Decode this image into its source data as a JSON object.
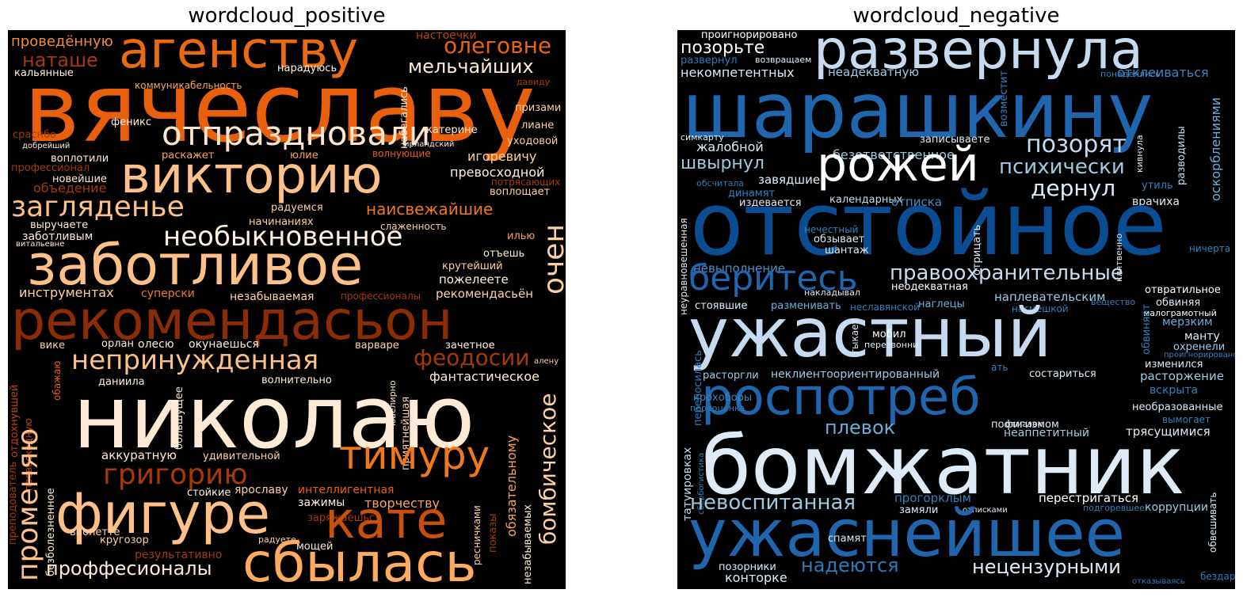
{
  "panels": [
    {
      "title": "wordcloud_positive",
      "words": [
        {
          "t": "вячеславу",
          "c": "#e8600c"
        },
        {
          "t": "агенству",
          "c": "#ea6a12"
        },
        {
          "t": "олеговне",
          "c": "#e86410"
        },
        {
          "t": "проведённую",
          "c": "#f08a3c"
        },
        {
          "t": "наташе",
          "c": "#a53a06"
        },
        {
          "t": "настоечки",
          "c": "#b9460a"
        },
        {
          "t": "мельчайших",
          "c": "#fdebd5"
        },
        {
          "t": "кальянные",
          "c": "#fff1e2"
        },
        {
          "t": "коммуникабельность",
          "c": "#f5a55b"
        },
        {
          "t": "нарадуюсь",
          "c": "#fff1e2"
        },
        {
          "t": "давиду",
          "c": "#a53a06"
        },
        {
          "t": "отпраздновали",
          "c": "#fde6cc"
        },
        {
          "t": "феникс",
          "c": "#fff1e2"
        },
        {
          "t": "призами",
          "c": "#fdd0a2"
        },
        {
          "t": "набегались",
          "c": "#fdebd5"
        },
        {
          "t": "катерине",
          "c": "#fdebd5"
        },
        {
          "t": "лиане",
          "c": "#fdd0a2"
        },
        {
          "t": "сраснбо",
          "c": "#a53a06"
        },
        {
          "t": "добрейший",
          "c": "#fdebd5"
        },
        {
          "t": "ирландский",
          "c": "#fdebd5"
        },
        {
          "t": "уходовой",
          "c": "#fdd0a2"
        },
        {
          "t": "воплотили",
          "c": "#fdebd5"
        },
        {
          "t": "раскажет",
          "c": "#f5a55b"
        },
        {
          "t": "юлие",
          "c": "#f5a55b"
        },
        {
          "t": "волнующие",
          "c": "#e8600c"
        },
        {
          "t": "игоревичу",
          "c": "#fdd0a2"
        },
        {
          "t": "профессионал",
          "c": "#a53a06"
        },
        {
          "t": "викторию",
          "c": "#fdc088"
        },
        {
          "t": "новейшие",
          "c": "#fdebd5"
        },
        {
          "t": "превосходной",
          "c": "#fff1e2"
        },
        {
          "t": "объедение",
          "c": "#a53a06"
        },
        {
          "t": "потрясающих",
          "c": "#a53a06"
        },
        {
          "t": "воплощает",
          "c": "#fdd0a2"
        },
        {
          "t": "загляденье",
          "c": "#fdc088"
        },
        {
          "t": "наисвежайшие",
          "c": "#f07818"
        },
        {
          "t": "радуемся",
          "c": "#fdd0a2"
        },
        {
          "t": "слаженность",
          "c": "#fdd0a2"
        },
        {
          "t": "очен",
          "c": "#fdd0a2"
        },
        {
          "t": "выручаете",
          "c": "#fdebd5"
        },
        {
          "t": "начинаниях",
          "c": "#fdd0a2"
        },
        {
          "t": "заботливым",
          "c": "#fdebd5"
        },
        {
          "t": "необыкновенное",
          "c": "#fff1e2"
        },
        {
          "t": "илью",
          "c": "#f5a55b"
        },
        {
          "t": "витальевне",
          "c": "#fdebd5"
        },
        {
          "t": "отъешь",
          "c": "#fdebd5"
        },
        {
          "t": "заботливое",
          "c": "#fdc088"
        },
        {
          "t": "крутейший",
          "c": "#fdd0a2"
        },
        {
          "t": "пожелеете",
          "c": "#fff1e2"
        },
        {
          "t": "инструментах",
          "c": "#fdd0a2"
        },
        {
          "t": "суперски",
          "c": "#f07818"
        },
        {
          "t": "незабываемая",
          "c": "#fdd0a2"
        },
        {
          "t": "профессионалы",
          "c": "#a53a06"
        },
        {
          "t": "рекомендасьён",
          "c": "#fdd0a2"
        },
        {
          "t": "рекомендасьон",
          "c": "#8c2c04"
        },
        {
          "t": "вике",
          "c": "#fdd0a2"
        },
        {
          "t": "орлан",
          "c": "#fdebd5"
        },
        {
          "t": "олесю",
          "c": "#fdebd5"
        },
        {
          "t": "окунаешься",
          "c": "#fdebd5"
        },
        {
          "t": "варваре",
          "c": "#fdd0a2"
        },
        {
          "t": "зачетное",
          "c": "#fff1e2"
        },
        {
          "t": "непринужденная",
          "c": "#fdc088"
        },
        {
          "t": "феодосии",
          "c": "#a53a06"
        },
        {
          "t": "алену",
          "c": "#fdd0a2"
        },
        {
          "t": "отдохнувшей",
          "c": "#b9460a"
        },
        {
          "t": "обажаю",
          "c": "#e8600c"
        },
        {
          "t": "даниила",
          "c": "#fff1e2"
        },
        {
          "t": "волнительно",
          "c": "#fdebd5"
        },
        {
          "t": "фантастическое",
          "c": "#fdebd5"
        },
        {
          "t": "николаю",
          "c": "#ffebd5"
        },
        {
          "t": "большущее",
          "c": "#fdebd5"
        },
        {
          "t": "ювелирно",
          "c": "#fdebd5"
        },
        {
          "t": "бомбическое",
          "c": "#fdd0a2"
        },
        {
          "t": "превосходную",
          "c": "#b9460a"
        },
        {
          "t": "преподователь",
          "c": "#a53a06"
        },
        {
          "t": "променяю",
          "c": "#fdc088"
        },
        {
          "t": "аккуратную",
          "c": "#fdebd5"
        },
        {
          "t": "удивительной",
          "c": "#fdd0a2"
        },
        {
          "t": "приятнейшая",
          "c": "#fdd0a2"
        },
        {
          "t": "тимуру",
          "c": "#f07818"
        },
        {
          "t": "обязательному",
          "c": "#f5a55b"
        },
        {
          "t": "григорию",
          "c": "#a53a06"
        },
        {
          "t": "безболезненное",
          "c": "#fdebd5"
        },
        {
          "t": "стойкие",
          "c": "#fff1e2"
        },
        {
          "t": "ярославу",
          "c": "#fdd0a2"
        },
        {
          "t": "интеллигентная",
          "c": "#e8600c"
        },
        {
          "t": "зажимы",
          "c": "#fff1e2"
        },
        {
          "t": "фигуре",
          "c": "#fdc088"
        },
        {
          "t": "заряжаешься",
          "c": "#a53a06"
        },
        {
          "t": "творчеству",
          "c": "#f5a55b"
        },
        {
          "t": "кате",
          "c": "#c9500a"
        },
        {
          "t": "показы",
          "c": "#a53a06"
        },
        {
          "t": "ресничками",
          "c": "#fdd0a2"
        },
        {
          "t": "незабываемых",
          "c": "#fdebd5"
        },
        {
          "t": "виолетте",
          "c": "#fdd0a2"
        },
        {
          "t": "кругозор",
          "c": "#fdd0a2"
        },
        {
          "t": "радуете",
          "c": "#fdd0a2"
        },
        {
          "t": "мощей",
          "c": "#fdebd5"
        },
        {
          "t": "результативно",
          "c": "#a53a06"
        },
        {
          "t": "проффесионалы",
          "c": "#fdebd5"
        },
        {
          "t": "сбылась",
          "c": "#fdab60"
        }
      ]
    },
    {
      "title": "wordcloud_negative",
      "words": [
        {
          "t": "проигнорировано",
          "c": "#ffffff"
        },
        {
          "t": "позорьте",
          "c": "#ffffff"
        },
        {
          "t": "развернула",
          "c": "#c6dbef"
        },
        {
          "t": "развернул",
          "c": "#2b7bba"
        },
        {
          "t": "возвращаем",
          "c": "#deebf7"
        },
        {
          "t": "некомпетентных",
          "c": "#deebf7"
        },
        {
          "t": "неадекватную",
          "c": "#9ecae1"
        },
        {
          "t": "возместит",
          "c": "#3182bd"
        },
        {
          "t": "понадеялись",
          "c": "#3182bd"
        },
        {
          "t": "отклеиваться",
          "c": "#3a86c2"
        },
        {
          "t": "шарашкину",
          "c": "#1f66ae"
        },
        {
          "t": "симкарту",
          "c": "#deebf7"
        },
        {
          "t": "записываете",
          "c": "#deebf7"
        },
        {
          "t": "разводилы",
          "c": "#c6dbef"
        },
        {
          "t": "оскорблениями",
          "c": "#6baed6"
        },
        {
          "t": "жалобной",
          "c": "#deebf7"
        },
        {
          "t": "безответственное",
          "c": "#9ecae1"
        },
        {
          "t": "позорят",
          "c": "#c6dbef"
        },
        {
          "t": "кивнула",
          "c": "#deebf7"
        },
        {
          "t": "рожей",
          "c": "#ffffff"
        },
        {
          "t": "швырнул",
          "c": "#9ecae1"
        },
        {
          "t": "психически",
          "c": "#9ecae1"
        },
        {
          "t": "обсчитала",
          "c": "#2b7bba"
        },
        {
          "t": "завядшие",
          "c": "#deebf7"
        },
        {
          "t": "утиль",
          "c": "#3182bd"
        },
        {
          "t": "дернул",
          "c": "#deebf7"
        },
        {
          "t": "динамят",
          "c": "#3182bd"
        },
        {
          "t": "неуравновешенная",
          "c": "#deebf7"
        },
        {
          "t": "издевается",
          "c": "#deebf7"
        },
        {
          "t": "календарных",
          "c": "#c6dbef"
        },
        {
          "t": "отписка",
          "c": "#4a8fc8"
        },
        {
          "t": "врачиха",
          "c": "#deebf7"
        },
        {
          "t": "отстойное",
          "c": "#0b4d93"
        },
        {
          "t": "нечестный",
          "c": "#3182bd"
        },
        {
          "t": "обзывает",
          "c": "#deebf7"
        },
        {
          "t": "шантаж",
          "c": "#deebf7"
        },
        {
          "t": "отрицать",
          "c": "#deebf7"
        },
        {
          "t": "клятвенно",
          "c": "#deebf7"
        },
        {
          "t": "ничерта",
          "c": "#3182bd"
        },
        {
          "t": "невыполнение",
          "c": "#4a8fc8"
        },
        {
          "t": "беритесь",
          "c": "#1f66ae"
        },
        {
          "t": "правоохранительные",
          "c": "#c6dbef"
        },
        {
          "t": "накладывал",
          "c": "#deebf7"
        },
        {
          "t": "неодекватная",
          "c": "#ffffff"
        },
        {
          "t": "наплевательским",
          "c": "#9ecae1"
        },
        {
          "t": "вещество",
          "c": "#3182bd"
        },
        {
          "t": "отвратильное",
          "c": "#ffffff"
        },
        {
          "t": "стоявшие",
          "c": "#deebf7"
        },
        {
          "t": "разменивать",
          "c": "#6baed6"
        },
        {
          "t": "неславянской",
          "c": "#3182bd"
        },
        {
          "t": "наглецы",
          "c": "#6baed6"
        },
        {
          "t": "насмешкой",
          "c": "#3182bd"
        },
        {
          "t": "обвиняя",
          "c": "#deebf7"
        },
        {
          "t": "малограмотный",
          "c": "#ffffff"
        },
        {
          "t": "ужастный",
          "c": "#c6dbef"
        },
        {
          "t": "обвиняет",
          "c": "#3182bd"
        },
        {
          "t": "мерзким",
          "c": "#6baed6"
        },
        {
          "t": "манту",
          "c": "#deebf7"
        },
        {
          "t": "охренели",
          "c": "#9ecae1"
        },
        {
          "t": "проигнорировано",
          "c": "#3182bd"
        },
        {
          "t": "изменился",
          "c": "#deebf7"
        },
        {
          "t": "переносилась",
          "c": "#2b7bba"
        },
        {
          "t": "тыкает",
          "c": "#deebf7"
        },
        {
          "t": "мобил",
          "c": "#ffffff"
        },
        {
          "t": "перезвонни",
          "c": "#deebf7"
        },
        {
          "t": "расторгли",
          "c": "#9ecae1"
        },
        {
          "t": "неклиентоориентированный",
          "c": "#9ecae1"
        },
        {
          "t": "ать",
          "c": "#3182bd"
        },
        {
          "t": "состариться",
          "c": "#deebf7"
        },
        {
          "t": "расторжение",
          "c": "#9ecae1"
        },
        {
          "t": "роспотреб",
          "c": "#1f66ae"
        },
        {
          "t": "вскрыта",
          "c": "#3182bd"
        },
        {
          "t": "татуировках",
          "c": "#c6dbef"
        },
        {
          "t": "крохоборы",
          "c": "#3a86c2"
        },
        {
          "t": "переоценка",
          "c": "#2b7bba"
        },
        {
          "t": "необразованные",
          "c": "#deebf7"
        },
        {
          "t": "вымогает",
          "c": "#3182bd"
        },
        {
          "t": "плевок",
          "c": "#6baed6"
        },
        {
          "t": "пофигизмом",
          "c": "#deebf7"
        },
        {
          "t": "неаппетитный",
          "c": "#9ecae1"
        },
        {
          "t": "отмазок",
          "c": "#deebf7"
        },
        {
          "t": "трясущимися",
          "c": "#deebf7"
        },
        {
          "t": "сбербогистика",
          "c": "#3182bd"
        },
        {
          "t": "бомжатник",
          "c": "#deebf7"
        },
        {
          "t": "невоспитанная",
          "c": "#9ecae1"
        },
        {
          "t": "прогорклым",
          "c": "#3182bd"
        },
        {
          "t": "перестригаться",
          "c": "#ffffff"
        },
        {
          "t": "подгоревшее",
          "c": "#3182bd"
        },
        {
          "t": "коррупции",
          "c": "#9ecae1"
        },
        {
          "t": "отписками",
          "c": "#deebf7"
        },
        {
          "t": "замяли",
          "c": "#deebf7"
        },
        {
          "t": "обвешивать",
          "c": "#deebf7"
        },
        {
          "t": "ужаснейшее",
          "c": "#1f66ae"
        },
        {
          "t": "спамят",
          "c": "#deebf7"
        },
        {
          "t": "надеются",
          "c": "#2b7bba"
        },
        {
          "t": "нецензурными",
          "c": "#deebf7"
        },
        {
          "t": "позорники",
          "c": "#deebf7"
        },
        {
          "t": "конторке",
          "c": "#deebf7"
        },
        {
          "t": "отказываясь",
          "c": "#2b7bba"
        },
        {
          "t": "бездарь",
          "c": "#2b7bba"
        }
      ]
    }
  ]
}
